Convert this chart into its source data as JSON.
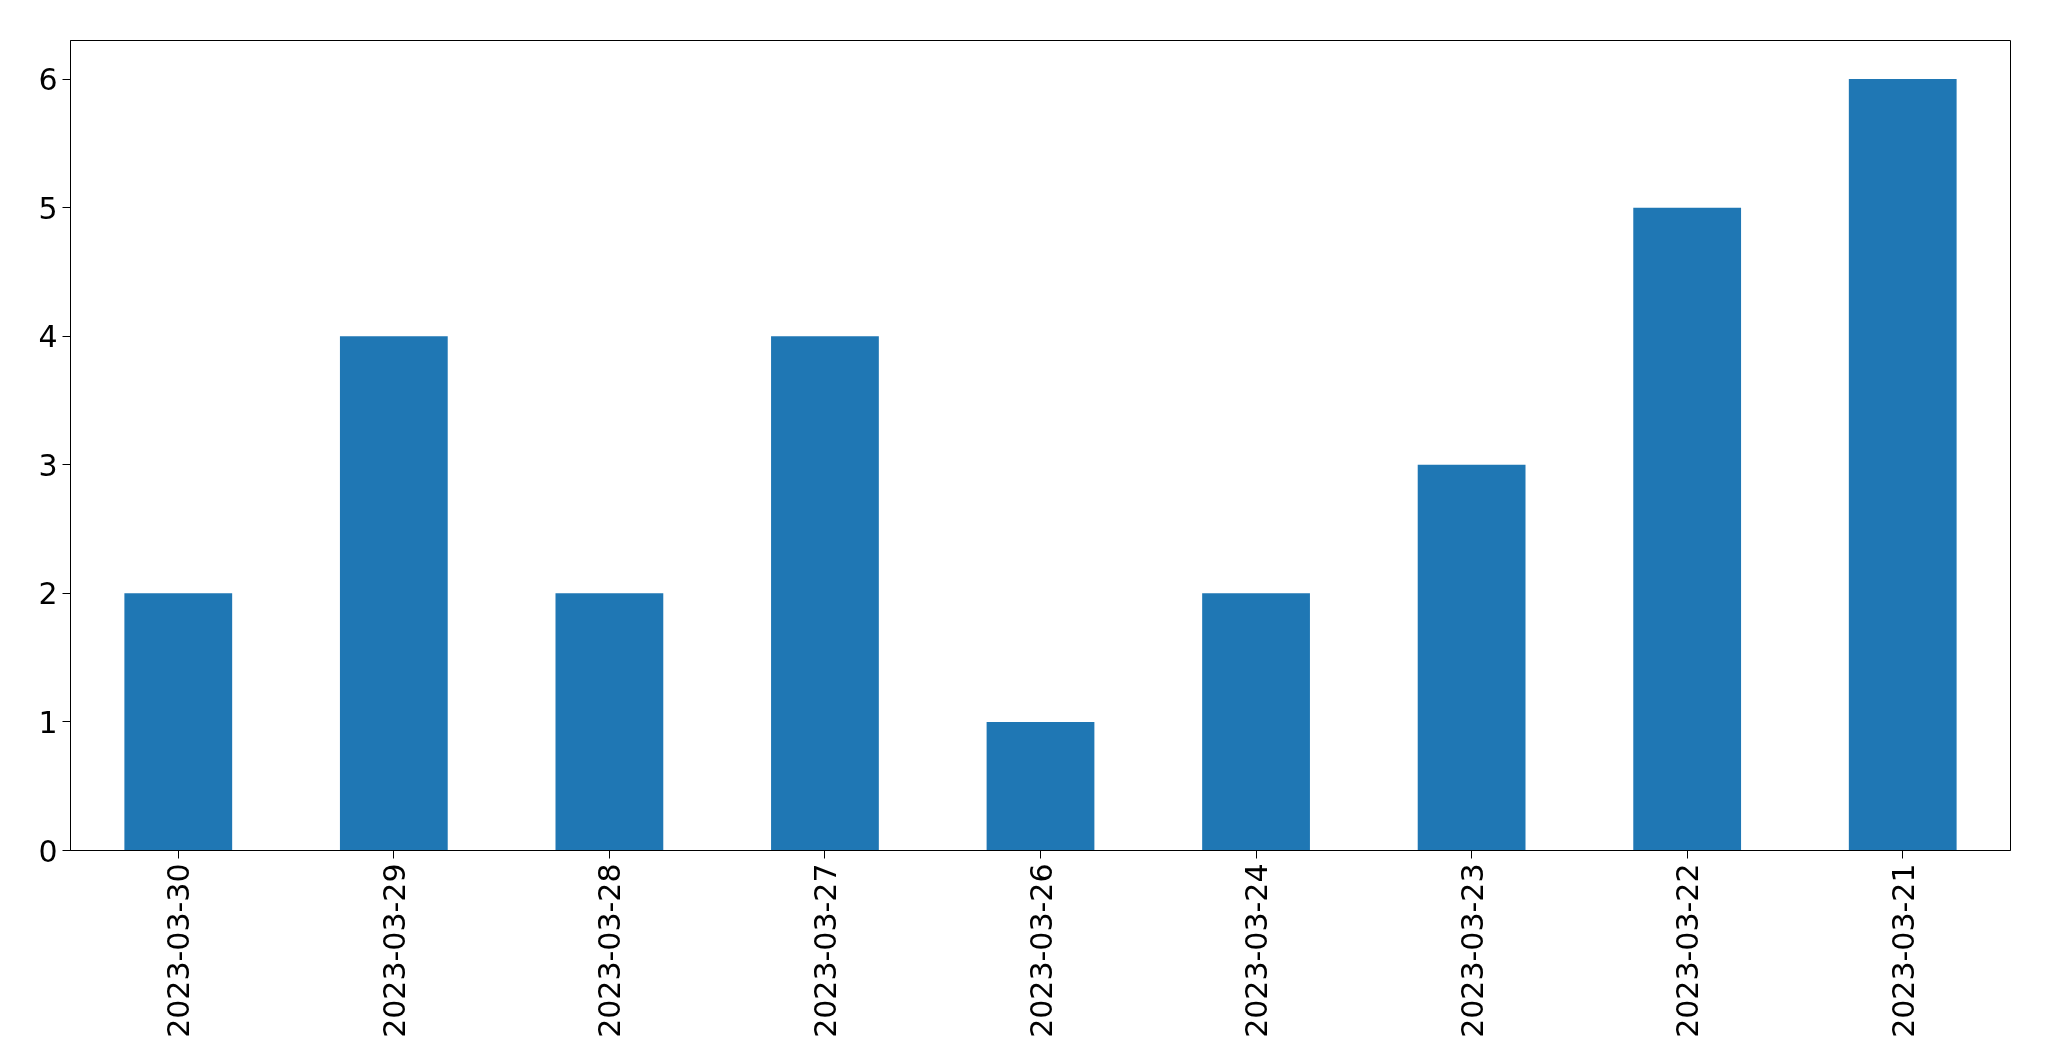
{
  "chart_data": {
    "type": "bar",
    "categories": [
      "2023-03-30",
      "2023-03-29",
      "2023-03-28",
      "2023-03-27",
      "2023-03-26",
      "2023-03-24",
      "2023-03-23",
      "2023-03-22",
      "2023-03-21"
    ],
    "values": [
      2,
      4,
      2,
      4,
      1,
      2,
      3,
      5,
      6
    ],
    "color": "#1f77b4",
    "ylim": [
      0,
      6.3
    ],
    "yticks": [
      0,
      1,
      2,
      3,
      4,
      5,
      6
    ],
    "grid": false
  }
}
